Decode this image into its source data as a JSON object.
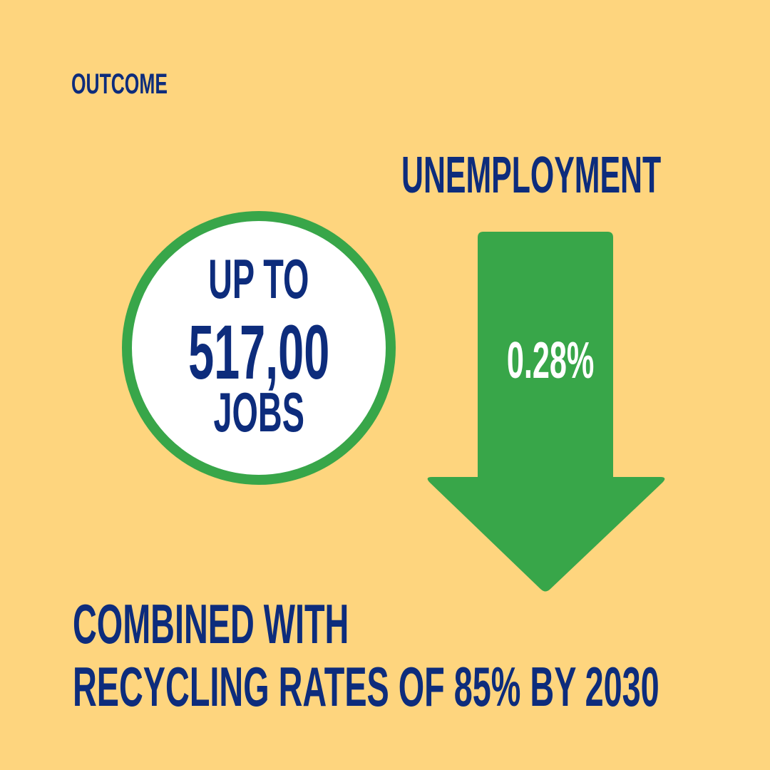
{
  "header": {
    "label": "OUTCOME"
  },
  "unemployment": {
    "heading": "UNEMPLOYMENT",
    "change": "0.28%",
    "direction": "down",
    "arrow_icon": "down-arrow-icon"
  },
  "jobs_badge": {
    "line1": "UP TO",
    "line2": "517,00",
    "line3": "JOBS"
  },
  "caption": {
    "line1": "COMBINED WITH",
    "line2": "RECYCLING RATES OF 85% BY 2030"
  },
  "colors": {
    "background": "#FED57E",
    "navy_text": "#0D2C7C",
    "green": "#38A649",
    "white": "#FFFFFF"
  }
}
